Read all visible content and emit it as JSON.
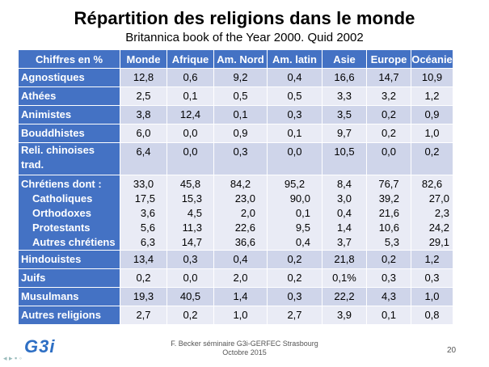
{
  "title": "Répartition des religions dans le monde",
  "subtitle": "Britannica  book of the Year 2000. Quid 2002",
  "table": {
    "headers": [
      "Chiffres en %",
      "Monde",
      "Afrique",
      "Am. Nord",
      "Am. latin",
      "Asie",
      "Europe",
      "Océanie"
    ],
    "rows": [
      {
        "label": "Agnostiques",
        "values": [
          "12,8",
          "0,6",
          "9,2",
          "0,4",
          "16,6",
          "14,7",
          "10,9"
        ]
      },
      {
        "label": "Athées",
        "values": [
          "2,5",
          "0,1",
          "0,5",
          "0,5",
          "3,3",
          "3,2",
          "1,2"
        ]
      },
      {
        "label": "Animistes",
        "values": [
          "3,8",
          "12,4",
          "0,1",
          "0,3",
          "3,5",
          "0,2",
          "0,9"
        ]
      },
      {
        "label": "Bouddhistes",
        "values": [
          "6,0",
          "0,0",
          "0,9",
          "0,1",
          "9,7",
          "0,2",
          "1,0"
        ]
      },
      {
        "label": "Reli. chinoises trad.",
        "values": [
          "6,4",
          "0,0",
          "0,3",
          "0,0",
          "10,5",
          "0,0",
          "0,2"
        ]
      },
      {
        "label": "Chrétiens dont :",
        "values": [
          "33,0",
          "45,8",
          "84,2",
          "95,2",
          "8,4",
          "76,7",
          "82,6"
        ],
        "subrows": [
          {
            "label": "Catholiques",
            "values": [
              "17,5",
              "15,3",
              "23,0",
              "90,0",
              "3,0",
              "39,2",
              "27,0"
            ]
          },
          {
            "label": "Orthodoxes",
            "values": [
              "3,6",
              "4,5",
              "2,0",
              "0,1",
              "0,4",
              "21,6",
              "2,3"
            ]
          },
          {
            "label": "Protestants",
            "values": [
              "5,6",
              "11,3",
              "22,6",
              "9,5",
              "1,4",
              "10,6",
              "24,2"
            ]
          },
          {
            "label": "Autres chrétiens",
            "values": [
              "6,3",
              "14,7",
              "36,6",
              "0,4",
              "3,7",
              "5,3",
              "29,1"
            ]
          }
        ]
      },
      {
        "label": "Hindouistes",
        "values": [
          "13,4",
          "0,3",
          "0,4",
          "0,2",
          "21,8",
          "0,2",
          "1,2"
        ]
      },
      {
        "label": "Juifs",
        "values": [
          "0,2",
          "0,0",
          "2,0",
          "0,2",
          "0,1%",
          "0,3",
          "0,3"
        ]
      },
      {
        "label": "Musulmans",
        "values": [
          "19,3",
          "40,5",
          "1,4",
          "0,3",
          "22,2",
          "4,3",
          "1,0"
        ]
      },
      {
        "label": "Autres religions",
        "values": [
          "2,7",
          "0,2",
          "1,0",
          "2,7",
          "3,9",
          "0,1",
          "0,8"
        ]
      }
    ]
  },
  "footer": {
    "logo": "G3i",
    "line1": "F. Becker séminaire G3i-GERFEC Strasbourg",
    "line2": "Octobre 2015",
    "page_number": "20"
  },
  "colors": {
    "header_bg": "#4472c4",
    "row_dark": "#cfd5ea",
    "row_light": "#e9ebf5"
  }
}
